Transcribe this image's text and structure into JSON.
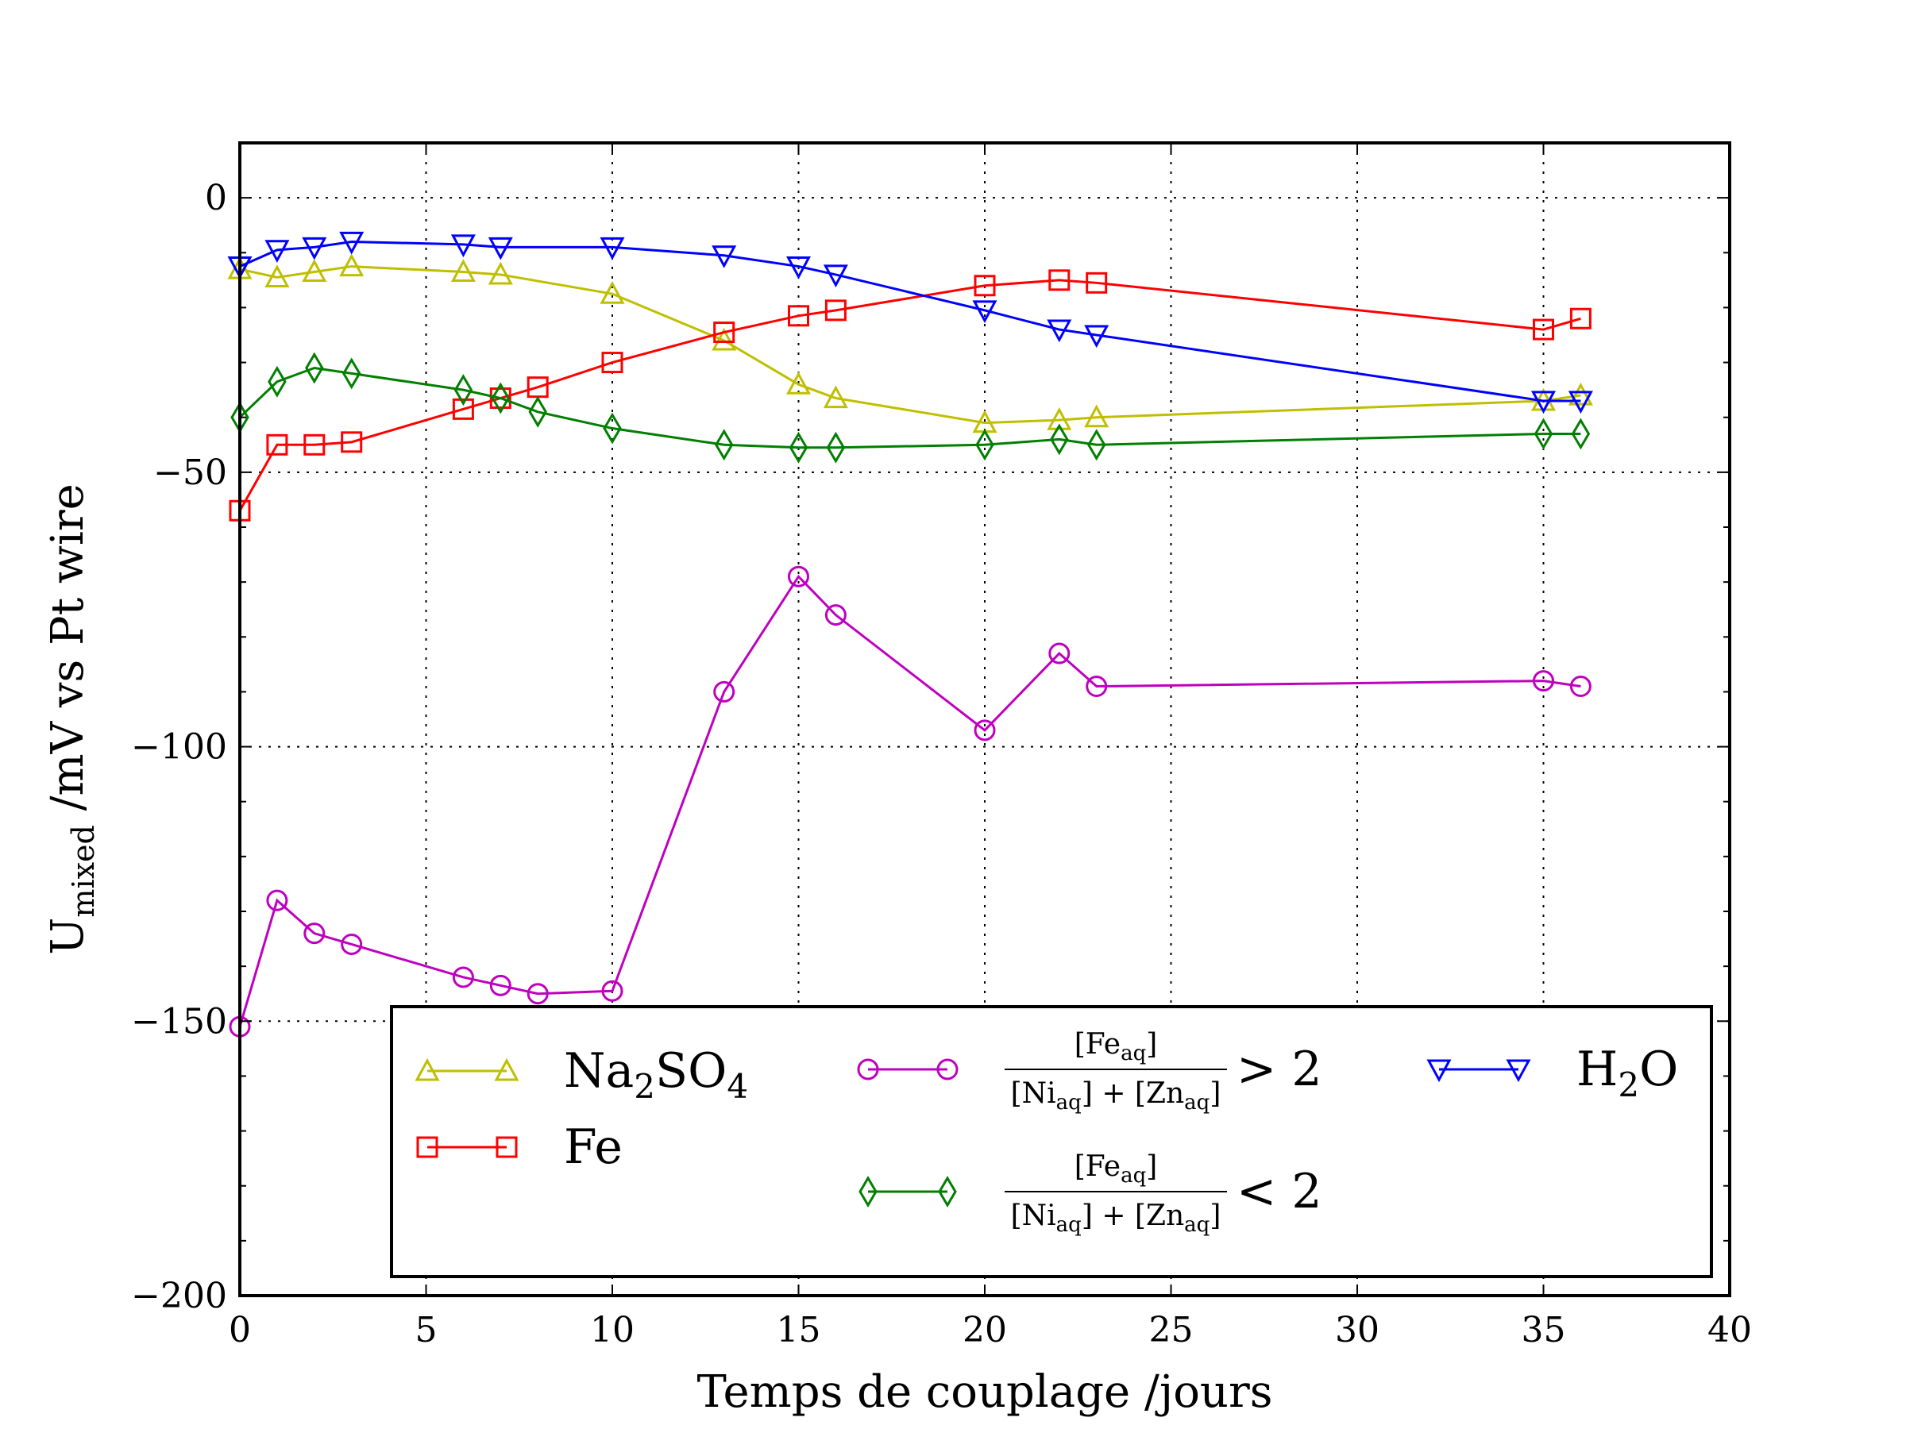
{
  "chart_data": {
    "type": "line",
    "xlabel": "Temps de couplage /jours",
    "ylabel_main": "U",
    "ylabel_sub": "mixed",
    "ylabel_rest": " /mV vs Pt wire",
    "xlim": [
      0,
      40
    ],
    "ylim": [
      -200,
      10
    ],
    "xticks": [
      0,
      5,
      10,
      15,
      20,
      25,
      30,
      35,
      40
    ],
    "yticks": [
      0,
      -50,
      -100,
      -150,
      -200
    ],
    "xtick_labels": [
      "0",
      "5",
      "10",
      "15",
      "20",
      "25",
      "30",
      "35",
      "40"
    ],
    "ytick_labels": [
      "0",
      "−50",
      "−100",
      "−150",
      "−200"
    ],
    "grid": true,
    "legend_position": "bottom-right",
    "series": [
      {
        "name": "Na2SO4",
        "legend_parts": [
          "Na",
          "2",
          "SO",
          "4"
        ],
        "color": "#bfbf00",
        "marker": "triangle-up",
        "x": [
          0,
          1,
          2,
          3,
          6,
          7,
          10,
          13,
          15,
          16,
          20,
          22,
          23,
          35,
          36
        ],
        "y": [
          -13,
          -14.5,
          -13.5,
          -12.5,
          -13.5,
          -14,
          -17.5,
          -26,
          -34,
          -36.5,
          -41,
          -40.5,
          -40,
          -37,
          -36
        ]
      },
      {
        "name": "Fe",
        "color": "#ff0000",
        "marker": "square",
        "x": [
          0,
          1,
          2,
          3,
          6,
          7,
          8,
          10,
          13,
          15,
          16,
          20,
          22,
          23,
          35,
          36
        ],
        "y": [
          -57,
          -45,
          -45,
          -44.5,
          -38.5,
          -36.5,
          -34.5,
          -30,
          -24.5,
          -21.5,
          -20.5,
          -16,
          -15,
          -15.5,
          -24,
          -22
        ]
      },
      {
        "name": "[Fe_aq]/([Ni_aq]+[Zn_aq]) > 2",
        "frac_num": "[Fe",
        "frac_num_sub": "aq",
        "frac_den": [
          "[Ni",
          "aq",
          "] + [Zn",
          "aq",
          "]"
        ],
        "relation": "> 2",
        "color": "#bf00bf",
        "marker": "circle",
        "x": [
          0,
          1,
          2,
          3,
          6,
          7,
          8,
          10,
          13,
          15,
          16,
          20,
          22,
          23,
          35,
          36
        ],
        "y": [
          -151,
          -128,
          -134,
          -136,
          -142,
          -143.5,
          -145,
          -144.5,
          -90,
          -69,
          -76,
          -97,
          -83,
          -89,
          -88,
          -89
        ]
      },
      {
        "name": "[Fe_aq]/([Ni_aq]+[Zn_aq]) < 2",
        "frac_num": "[Fe",
        "frac_num_sub": "aq",
        "frac_den": [
          "[Ni",
          "aq",
          "] + [Zn",
          "aq",
          "]"
        ],
        "relation": "< 2",
        "color": "#007f00",
        "marker": "diamond",
        "x": [
          0,
          1,
          2,
          3,
          6,
          7,
          8,
          10,
          13,
          15,
          16,
          20,
          22,
          23,
          35,
          36
        ],
        "y": [
          -40,
          -33.5,
          -31,
          -32,
          -35,
          -36.5,
          -39,
          -42,
          -45,
          -45.5,
          -45.5,
          -45,
          -44,
          -45,
          -43,
          -43
        ]
      },
      {
        "name": "H2O",
        "legend_parts": [
          "H",
          "2",
          "O",
          ""
        ],
        "color": "#0000ff",
        "marker": "triangle-down",
        "x": [
          0,
          1,
          2,
          3,
          6,
          7,
          10,
          13,
          15,
          16,
          20,
          22,
          23,
          35,
          36
        ],
        "y": [
          -12.5,
          -9.5,
          -9,
          -8,
          -8.5,
          -9,
          -9,
          -10.5,
          -12.5,
          -14,
          -20.5,
          -24,
          -25,
          -37,
          -37
        ]
      }
    ]
  }
}
